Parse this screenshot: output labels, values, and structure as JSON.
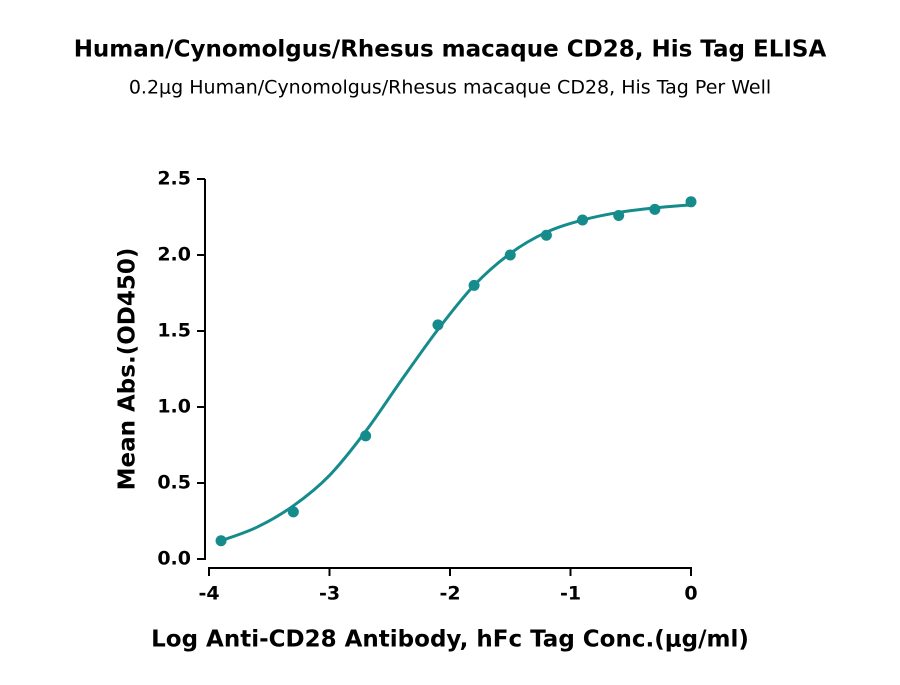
{
  "chart_data": {
    "type": "scatter",
    "title": "Human/Cynomolgus/Rhesus macaque CD28, His Tag ELISA",
    "subtitle": "0.2μg Human/Cynomolgus/Rhesus macaque CD28, His Tag Per Well",
    "x_label": "Log Anti-CD28 Antibody, hFc Tag Conc.(μg/ml)",
    "y_label": "Mean Abs.(OD450)",
    "color": "#168b8c",
    "x": [
      -3.9,
      -3.3,
      -2.7,
      -2.1,
      -1.8,
      -1.5,
      -1.2,
      -0.9,
      -0.6,
      -0.3,
      0
    ],
    "values": [
      0.12,
      0.31,
      0.81,
      1.54,
      1.8,
      2.0,
      2.13,
      2.23,
      2.26,
      2.3,
      2.35
    ],
    "curve": {
      "x": [
        -3.9,
        -3.6,
        -3.3,
        -3.0,
        -2.7,
        -2.4,
        -2.1,
        -1.8,
        -1.5,
        -1.2,
        -0.9,
        -0.6,
        -0.3,
        0
      ],
      "values": [
        0.12,
        0.21,
        0.35,
        0.55,
        0.84,
        1.18,
        1.51,
        1.8,
        2.01,
        2.15,
        2.23,
        2.28,
        2.31,
        2.33
      ]
    },
    "xlim": [
      -4,
      0
    ],
    "xticks": [
      -4,
      -3,
      -2,
      -1,
      0
    ],
    "ylim": [
      0,
      2.5
    ],
    "yticks": [
      {
        "value": 0,
        "label": "0.0"
      },
      0.5,
      {
        "value": 1,
        "label": "1.0"
      },
      1.5,
      {
        "value": 2,
        "label": "2.0"
      },
      2.5
    ]
  }
}
